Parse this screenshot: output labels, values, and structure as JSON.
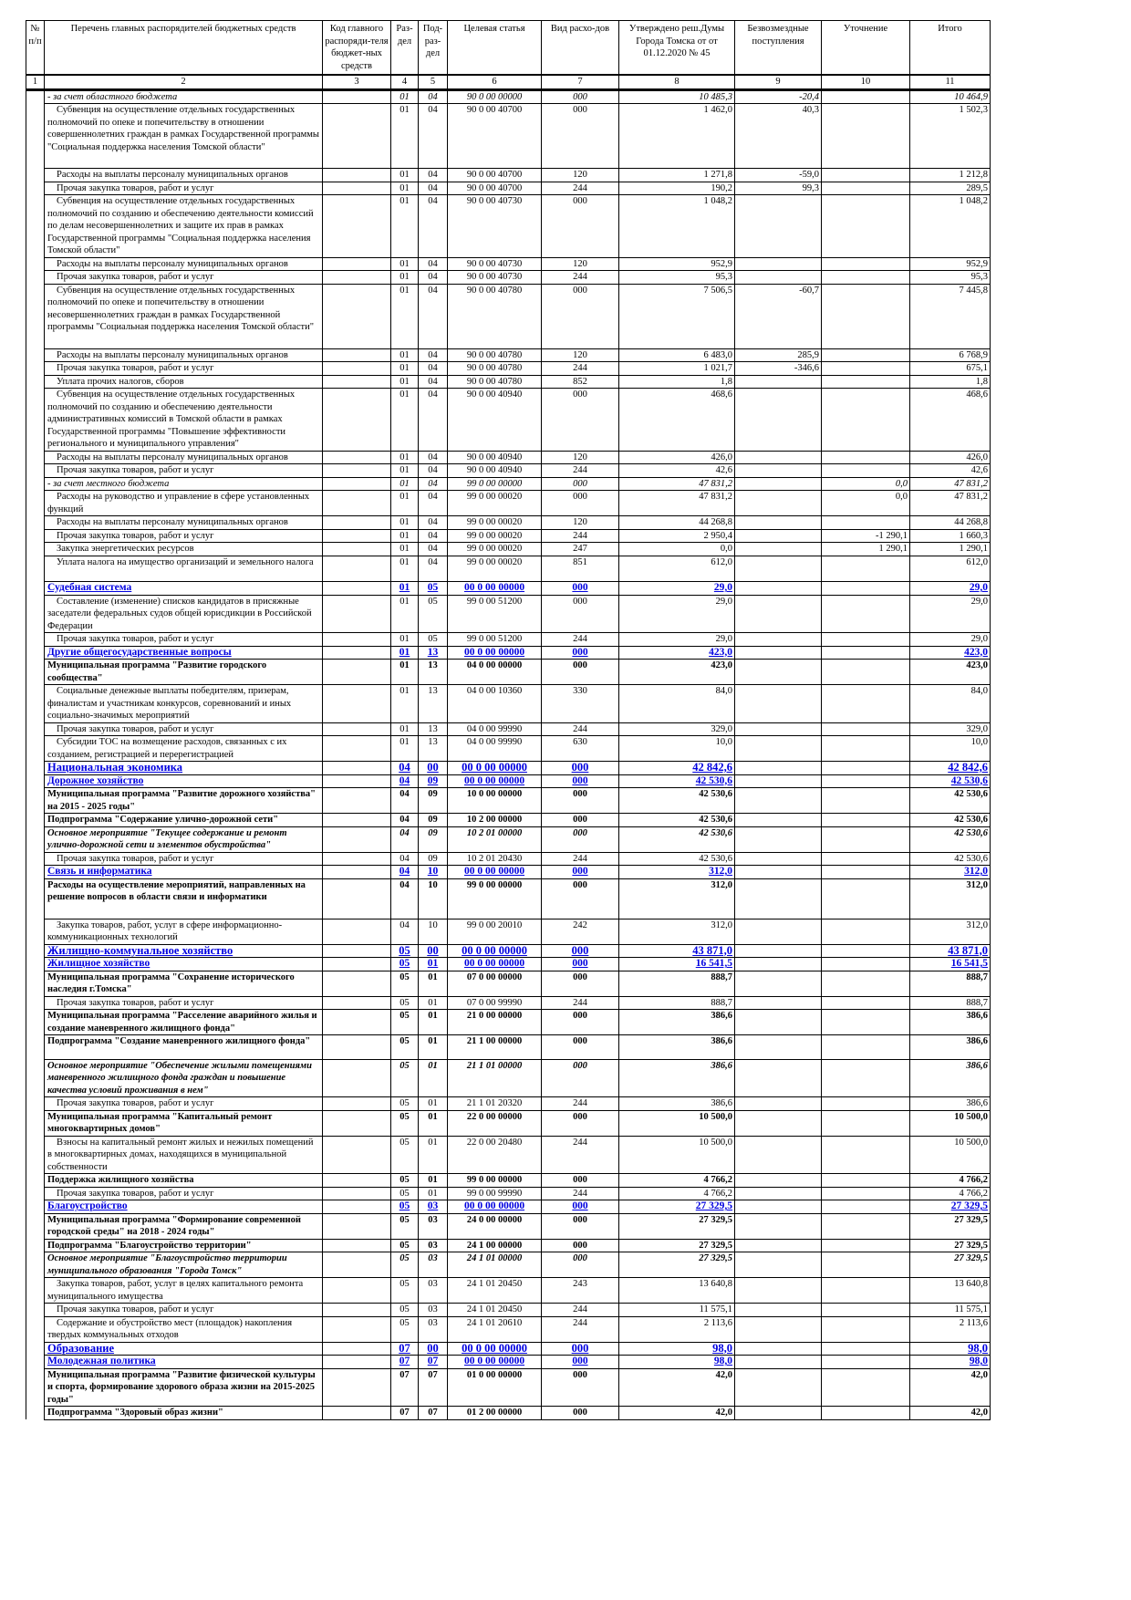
{
  "headers": [
    "№ п/п",
    "Перечень главных распорядителей бюджетных средств",
    "Код главного распоряди-теля бюджет-ных средств",
    "Раз-дел",
    "Под-раз-дел",
    "Целевая статья",
    "Вид расхо-дов",
    "Утверждено реш.Думы Города Томска от от 01.12.2020 № 45",
    "Безвозмездные поступления",
    "Уточнение",
    "Итого"
  ],
  "column_numbers": [
    "1",
    "2",
    "3",
    "4",
    "5",
    "6",
    "7",
    "8",
    "9",
    "10",
    "11"
  ],
  "rows": [
    [
      "it",
      "- за счет областного бюджета",
      "01",
      "04",
      "90 0 00 00000",
      "000",
      "10 485,3",
      "-20,4",
      "",
      "10 464,9"
    ],
    [
      "n",
      "Субвенция на осуществление отдельных государственных полномочий по опеке и попечительству в отношении совершеннолетних граждан в рамках Государственной программы \"Социальная поддержка населения Томской области\"",
      "01",
      "04",
      "90 0 00 40700",
      "000",
      "1 462,0",
      "40,3",
      "",
      "1 502,3"
    ],
    [
      "n",
      "Расходы на выплаты персоналу муниципальных органов",
      "01",
      "04",
      "90 0 00 40700",
      "120",
      "1 271,8",
      "-59,0",
      "",
      "1 212,8"
    ],
    [
      "n",
      "Прочая закупка товаров, работ и услуг",
      "01",
      "04",
      "90 0 00 40700",
      "244",
      "190,2",
      "99,3",
      "",
      "289,5"
    ],
    [
      "n",
      "Субвенция на осуществление отдельных государственных полномочий по созданию и обеспечению деятельности комиссий по делам несовершеннолетних и защите их прав в рамках Государственной программы \"Социальная поддержка населения Томской области\"",
      "01",
      "04",
      "90 0 00 40730",
      "000",
      "1 048,2",
      "",
      "",
      "1 048,2"
    ],
    [
      "n",
      "Расходы на выплаты персоналу муниципальных органов",
      "01",
      "04",
      "90 0 00 40730",
      "120",
      "952,9",
      "",
      "",
      "952,9"
    ],
    [
      "n",
      "Прочая закупка товаров, работ и услуг",
      "01",
      "04",
      "90 0 00 40730",
      "244",
      "95,3",
      "",
      "",
      "95,3"
    ],
    [
      "n",
      "Субвенция на осуществление отдельных государственных полномочий по опеке и попечительству в отношении несовершеннолетних граждан в рамках Государственной программы \"Социальная поддержка населения Томской области\"",
      "01",
      "04",
      "90 0 00 40780",
      "000",
      "7 506,5",
      "-60,7",
      "",
      "7 445,8"
    ],
    [
      "n",
      "Расходы на выплаты персоналу муниципальных органов",
      "01",
      "04",
      "90 0 00 40780",
      "120",
      "6 483,0",
      "285,9",
      "",
      "6 768,9"
    ],
    [
      "n",
      "Прочая закупка товаров, работ и услуг",
      "01",
      "04",
      "90 0 00 40780",
      "244",
      "1 021,7",
      "-346,6",
      "",
      "675,1"
    ],
    [
      "n",
      "Уплата прочих налогов, сборов",
      "01",
      "04",
      "90 0 00 40780",
      "852",
      "1,8",
      "",
      "",
      "1,8"
    ],
    [
      "n",
      "Субвенция на осуществление отдельных государственных полномочий по созданию и обеспечению деятельности административных комиссий в Томской области в рамках Государственной программы \"Повышение эффективности регионального и муниципального управления\"",
      "01",
      "04",
      "90 0 00 40940",
      "000",
      "468,6",
      "",
      "",
      "468,6"
    ],
    [
      "n",
      "Расходы на выплаты персоналу муниципальных органов",
      "01",
      "04",
      "90 0 00 40940",
      "120",
      "426,0",
      "",
      "",
      "426,0"
    ],
    [
      "n",
      "Прочая закупка товаров, работ и услуг",
      "01",
      "04",
      "90 0 00 40940",
      "244",
      "42,6",
      "",
      "",
      "42,6"
    ],
    [
      "it",
      "- за счет местного бюджета",
      "01",
      "04",
      "99 0 00 00000",
      "000",
      "47 831,2",
      "",
      "0,0",
      "47 831,2"
    ],
    [
      "n",
      "Расходы на руководство и управление в сфере установленных функций",
      "01",
      "04",
      "99 0 00 00020",
      "000",
      "47 831,2",
      "",
      "0,0",
      "47 831,2"
    ],
    [
      "n",
      "Расходы на выплаты персоналу муниципальных органов",
      "01",
      "04",
      "99 0 00 00020",
      "120",
      "44 268,8",
      "",
      "",
      "44 268,8"
    ],
    [
      "n",
      "Прочая закупка товаров, работ и услуг",
      "01",
      "04",
      "99 0 00 00020",
      "244",
      "2 950,4",
      "",
      "-1 290,1",
      "1 660,3"
    ],
    [
      "n",
      "Закупка энергетических ресурсов",
      "01",
      "04",
      "99 0 00 00020",
      "247",
      "0,0",
      "",
      "1 290,1",
      "1 290,1"
    ],
    [
      "n",
      "Уплата налога на имущество организаций и земельного налога",
      "01",
      "04",
      "99 0 00 00020",
      "851",
      "612,0",
      "",
      "",
      "612,0"
    ],
    [
      "sub",
      "Судебная система",
      "01",
      "05",
      "00 0 00 00000",
      "000",
      "29,0",
      "",
      "",
      "29,0"
    ],
    [
      "n",
      "Составление (изменение) списков кандидатов в присяжные заседатели федеральных судов общей юрисдикции в Российской Федерации",
      "01",
      "05",
      "99 0 00 51200",
      "000",
      "29,0",
      "",
      "",
      "29,0"
    ],
    [
      "n",
      "Прочая закупка товаров, работ и услуг",
      "01",
      "05",
      "99 0 00 51200",
      "244",
      "29,0",
      "",
      "",
      "29,0"
    ],
    [
      "sub",
      "Другие общегосударственные вопросы",
      "01",
      "13",
      "00 0 00 00000",
      "000",
      "423,0",
      "",
      "",
      "423,0"
    ],
    [
      "b",
      "Муниципальная программа \"Развитие городского сообщества\"",
      "01",
      "13",
      "04 0 00 00000",
      "000",
      "423,0",
      "",
      "",
      "423,0"
    ],
    [
      "n",
      "Социальные денежные выплаты победителям, призерам, финалистам и участникам конкурсов, соревнований и иных социально-значимых мероприятий",
      "01",
      "13",
      "04 0 00 10360",
      "330",
      "84,0",
      "",
      "",
      "84,0"
    ],
    [
      "n",
      "Прочая закупка товаров, работ и услуг",
      "01",
      "13",
      "04 0 00 99990",
      "244",
      "329,0",
      "",
      "",
      "329,0"
    ],
    [
      "n",
      "Субсидии ТОС на возмещение расходов, связанных с их созданием, регистрацией и перерегистрацией",
      "01",
      "13",
      "04 0 00 99990",
      "630",
      "10,0",
      "",
      "",
      "10,0"
    ],
    [
      "sec",
      "Национальная экономика",
      "04",
      "00",
      "00 0 00 00000",
      "000",
      "42 842,6",
      "",
      "",
      "42 842,6"
    ],
    [
      "sub",
      "Дорожное хозяйство",
      "04",
      "09",
      "00 0 00 00000",
      "000",
      "42 530,6",
      "",
      "",
      "42 530,6"
    ],
    [
      "b",
      "Муниципальная программа \"Развитие дорожного хозяйства\" на 2015 - 2025 годы\"",
      "04",
      "09",
      "10 0 00 00000",
      "000",
      "42 530,6",
      "",
      "",
      "42 530,6"
    ],
    [
      "b",
      "Подпрограмма \"Содержание улично-дорожной сети\"",
      "04",
      "09",
      "10 2 00 00000",
      "000",
      "42 530,6",
      "",
      "",
      "42 530,6"
    ],
    [
      "bi",
      "Основное мероприятие \"Текущее содержание и ремонт улично-дорожной сети и элементов обустройства\"",
      "04",
      "09",
      "10 2 01 00000",
      "000",
      "42 530,6",
      "",
      "",
      "42 530,6"
    ],
    [
      "n",
      "Прочая закупка товаров, работ и услуг",
      "04",
      "09",
      "10 2 01 20430",
      "244",
      "42 530,6",
      "",
      "",
      "42 530,6"
    ],
    [
      "sub",
      "Связь и информатика",
      "04",
      "10",
      "00 0 00 00000",
      "000",
      "312,0",
      "",
      "",
      "312,0"
    ],
    [
      "b",
      "Расходы на осуществление мероприятий, направленных на решение вопросов в области связи и информатики",
      "04",
      "10",
      "99 0 00 00000",
      "000",
      "312,0",
      "",
      "",
      "312,0"
    ],
    [
      "n",
      "Закупка товаров, работ, услуг в сфере информационно-коммуникационных технологий",
      "04",
      "10",
      "99 0 00 20010",
      "242",
      "312,0",
      "",
      "",
      "312,0"
    ],
    [
      "sec",
      "Жилищно-коммунальное хозяйство",
      "05",
      "00",
      "00 0 00 00000",
      "000",
      "43 871,0",
      "",
      "",
      "43 871,0"
    ],
    [
      "sub",
      "Жилищное хозяйство",
      "05",
      "01",
      "00 0 00 00000",
      "000",
      "16 541,5",
      "",
      "",
      "16 541,5"
    ],
    [
      "b",
      "Муниципальная программа \"Сохранение исторического наследия г.Томска\"",
      "05",
      "01",
      "07 0 00 00000",
      "000",
      "888,7",
      "",
      "",
      "888,7"
    ],
    [
      "n",
      "Прочая закупка товаров, работ и услуг",
      "05",
      "01",
      "07 0 00 99990",
      "244",
      "888,7",
      "",
      "",
      "888,7"
    ],
    [
      "b",
      "Муниципальная программа \"Расселение аварийного жилья и создание маневренного жилищного фонда\"",
      "05",
      "01",
      "21 0 00 00000",
      "000",
      "386,6",
      "",
      "",
      "386,6"
    ],
    [
      "b",
      "Подпрограмма \"Создание маневренного жилищного фонда\"",
      "05",
      "01",
      "21 1 00 00000",
      "000",
      "386,6",
      "",
      "",
      "386,6"
    ],
    [
      "bi",
      "Основное мероприятие \"Обеспечение жилыми помещениями маневренного жилищного фонда граждан и повышение качества условий проживания в нем\"",
      "05",
      "01",
      "21 1 01 00000",
      "000",
      "386,6",
      "",
      "",
      "386,6"
    ],
    [
      "n",
      "Прочая закупка товаров, работ и услуг",
      "05",
      "01",
      "21 1 01 20320",
      "244",
      "386,6",
      "",
      "",
      "386,6"
    ],
    [
      "b",
      "Муниципальная программа \"Капитальный ремонт многоквартирных домов\"",
      "05",
      "01",
      "22 0 00 00000",
      "000",
      "10 500,0",
      "",
      "",
      "10 500,0"
    ],
    [
      "n",
      "Взносы на капитальный ремонт жилых и нежилых помещений в многоквартирных домах, находящихся в муниципальной собственности",
      "05",
      "01",
      "22 0 00 20480",
      "244",
      "10 500,0",
      "",
      "",
      "10 500,0"
    ],
    [
      "b",
      "Поддержка жилищного хозяйства",
      "05",
      "01",
      "99 0 00 00000",
      "000",
      "4 766,2",
      "",
      "",
      "4 766,2"
    ],
    [
      "n",
      "Прочая закупка товаров, работ и услуг",
      "05",
      "01",
      "99 0 00 99990",
      "244",
      "4 766,2",
      "",
      "",
      "4 766,2"
    ],
    [
      "sub",
      "Благоустройство",
      "05",
      "03",
      "00 0 00 00000",
      "000",
      "27 329,5",
      "",
      "",
      "27 329,5"
    ],
    [
      "b",
      "Муниципальная программа \"Формирование современной городской среды\" на 2018 - 2024 годы\"",
      "05",
      "03",
      "24 0 00 00000",
      "000",
      "27 329,5",
      "",
      "",
      "27 329,5"
    ],
    [
      "b",
      "Подпрограмма \"Благоустройство территории\"",
      "05",
      "03",
      "24 1 00 00000",
      "000",
      "27 329,5",
      "",
      "",
      "27 329,5"
    ],
    [
      "bi",
      "Основное мероприятие \"Благоустройство территории муниципального образования \"Города Томск\"",
      "05",
      "03",
      "24 1 01 00000",
      "000",
      "27 329,5",
      "",
      "",
      "27 329,5"
    ],
    [
      "n",
      "Закупка товаров, работ, услуг в целях капитального ремонта муниципального имущества",
      "05",
      "03",
      "24 1 01 20450",
      "243",
      "13 640,8",
      "",
      "",
      "13 640,8"
    ],
    [
      "n",
      "Прочая закупка товаров, работ и услуг",
      "05",
      "03",
      "24 1 01 20450",
      "244",
      "11 575,1",
      "",
      "",
      "11 575,1"
    ],
    [
      "n",
      "Содержание и обустройство мест (площадок) накопления твердых коммунальных отходов",
      "05",
      "03",
      "24 1 01 20610",
      "244",
      "2 113,6",
      "",
      "",
      "2 113,6"
    ],
    [
      "sec",
      "Образование",
      "07",
      "00",
      "00 0 00 00000",
      "000",
      "98,0",
      "",
      "",
      "98,0"
    ],
    [
      "sub",
      "Молодежная политика",
      "07",
      "07",
      "00 0 00 00000",
      "000",
      "98,0",
      "",
      "",
      "98,0"
    ],
    [
      "b",
      "Муниципальная программа \"Развитие физической культуры и спорта, формирование здорового образа жизни на 2015-2025 годы\"",
      "07",
      "07",
      "01 0 00 00000",
      "000",
      "42,0",
      "",
      "",
      "42,0"
    ],
    [
      "b",
      "Подпрограмма \"Здоровый образ жизни\"",
      "07",
      "07",
      "01 2 00 00000",
      "000",
      "42,0",
      "",
      "",
      "42,0"
    ]
  ],
  "colors": {
    "section": "#0000e0",
    "text": "#000000"
  }
}
